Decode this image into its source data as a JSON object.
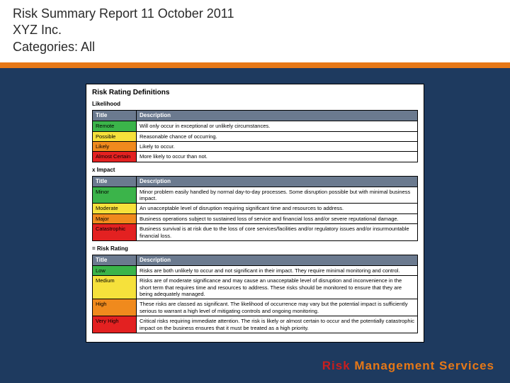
{
  "header": {
    "line1": "Risk Summary Report 11 October 2011",
    "line2": "XYZ Inc.",
    "line3": "Categories: All"
  },
  "report": {
    "title": "Risk Rating Definitions",
    "likelihood": {
      "label": "Likelihood",
      "header_title": "Title",
      "header_desc": "Description",
      "rows": [
        {
          "title": "Remote",
          "desc": "Will only occur in exceptional or unlikely circumstances.",
          "color": "#3bb44a"
        },
        {
          "title": "Possible",
          "desc": "Reasonable chance of occurring.",
          "color": "#f6e13b"
        },
        {
          "title": "Likely",
          "desc": "Likely to occur.",
          "color": "#f08a1d"
        },
        {
          "title": "Almost Certain",
          "desc": "More likely to occur than not.",
          "color": "#e32121"
        }
      ]
    },
    "impact": {
      "label": "x Impact",
      "header_title": "Title",
      "header_desc": "Description",
      "rows": [
        {
          "title": "Minor",
          "desc": "Minor problem easily handled by normal day-to-day processes. Some disruption possible but with minimal business impact.",
          "color": "#3bb44a"
        },
        {
          "title": "Moderate",
          "desc": "An unacceptable level of disruption requiring significant time and resources to address.",
          "color": "#f6e13b"
        },
        {
          "title": "Major",
          "desc": "Business operations subject to sustained loss of service and financial loss and/or severe reputational damage.",
          "color": "#f08a1d"
        },
        {
          "title": "Catastrophic",
          "desc": "Business survival is at risk due to the loss of core services/facilities and/or regulatory issues and/or insurmountable financial loss.",
          "color": "#e32121"
        }
      ]
    },
    "rating": {
      "label": "= Risk Rating",
      "header_title": "Title",
      "header_desc": "Description",
      "rows": [
        {
          "title": "Low",
          "desc": "Risks are both unlikely to occur and not significant in their impact. They require minimal monitoring and control.",
          "color": "#3bb44a"
        },
        {
          "title": "Medium",
          "desc": "Risks are of moderate significance and may cause an unacceptable level of disruption and inconvenience in the short term that requires time and resources to address. These risks should be monitored to ensure that they are being adequately managed.",
          "color": "#f6e13b"
        },
        {
          "title": "High",
          "desc": "These risks are classed as significant. The likelihood of occurrence may vary but the potential impact is sufficiently serious to warrant a high level of mitigating controls and ongoing monitoring.",
          "color": "#f08a1d"
        },
        {
          "title": "Very High",
          "desc": "Critical risks requiring immediate attention. The risk is likely or almost certain to occur and the potentially catastrophic impact on the business ensures that it must be treated as a high priority.",
          "color": "#e32121"
        }
      ]
    }
  },
  "footer": {
    "part1": "Risk ",
    "part2": "Management Services"
  },
  "colors": {
    "page_bg": "#1e3a5f",
    "orange_bar": "#e67817",
    "header_bg": "#6b7a8f"
  }
}
